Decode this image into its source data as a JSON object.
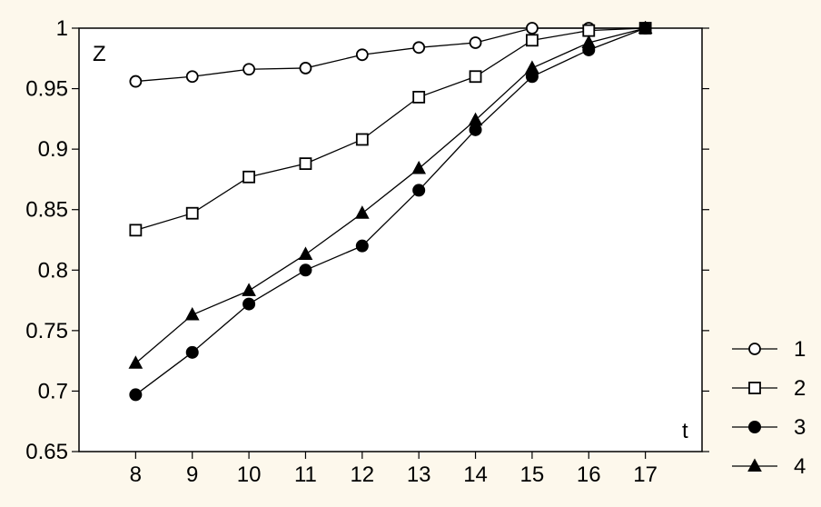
{
  "chart_data": {
    "type": "line",
    "title": "",
    "xlabel": "t",
    "ylabel": "Z",
    "x": [
      8,
      9,
      10,
      11,
      12,
      13,
      14,
      15,
      16,
      17
    ],
    "xlim": [
      7,
      18
    ],
    "ylim": [
      0.65,
      1.0
    ],
    "yticks": [
      0.65,
      0.7,
      0.75,
      0.8,
      0.85,
      0.9,
      0.95,
      1.0
    ],
    "ytick_labels": [
      "0.65",
      "0.7",
      "0.75",
      "0.8",
      "0.85",
      "0.9",
      "0.95",
      "1"
    ],
    "xtick_labels": [
      "8",
      "9",
      "10",
      "11",
      "12",
      "13",
      "14",
      "15",
      "16",
      "17"
    ],
    "grid": false,
    "legend_placement": "bottom-right outside",
    "series": [
      {
        "name": "1",
        "marker": "open-circle",
        "values": [
          0.956,
          0.96,
          0.966,
          0.967,
          0.978,
          0.984,
          0.988,
          1.0,
          1.0,
          1.0
        ]
      },
      {
        "name": "2",
        "marker": "open-square",
        "values": [
          0.833,
          0.847,
          0.877,
          0.888,
          0.908,
          0.943,
          0.96,
          0.99,
          0.998,
          1.0
        ]
      },
      {
        "name": "3",
        "marker": "filled-circle",
        "values": [
          0.697,
          0.732,
          0.772,
          0.8,
          0.82,
          0.866,
          0.916,
          0.96,
          0.982,
          1.0
        ]
      },
      {
        "name": "4",
        "marker": "filled-triangle",
        "values": [
          0.723,
          0.763,
          0.783,
          0.813,
          0.847,
          0.884,
          0.924,
          0.967,
          0.988,
          1.0
        ]
      }
    ]
  },
  "colors": {
    "background": "#fdf8ec",
    "plot_area": "#ffffff",
    "ink": "#000000"
  }
}
